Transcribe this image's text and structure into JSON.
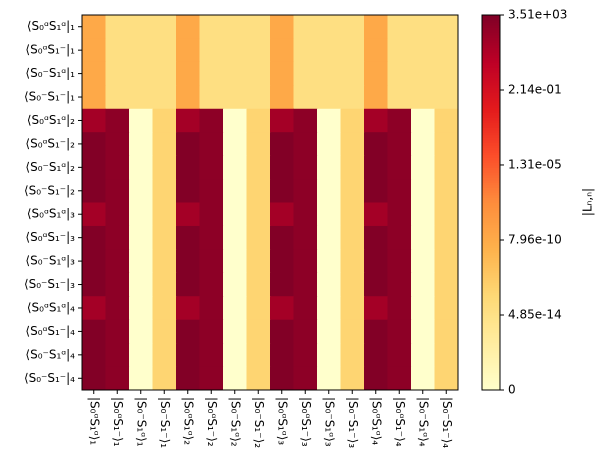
{
  "chart_data": {
    "type": "heatmap",
    "colorbar_label": "|Lₙ,ₙ|",
    "colormap": "YlOrRd",
    "colorbar_scale": "symlog",
    "clim": [
      0,
      3510
    ],
    "cticks": [
      0,
      {
        "value": 4.85e-14,
        "label": "4.85e-14"
      },
      {
        "value": 7.96e-10,
        "label": "7.96e-10"
      },
      {
        "value": 1.31e-05,
        "label": "1.31e-05"
      },
      {
        "value": 0.214,
        "label": "2.14e-01"
      },
      {
        "value": 3510,
        "label": "3.51e+03"
      }
    ],
    "y_categories": [
      "⟨S₀ᵅS₁ᵅ|₁",
      "⟨S₀ᵅS₁⁻|₁",
      "⟨S₀⁻S₁ᵅ|₁",
      "⟨S₀⁻S₁⁻|₁",
      "⟨S₀ᵅS₁ᵅ|₂",
      "⟨S₀ᵅS₁⁻|₂",
      "⟨S₀⁻S₁ᵅ|₂",
      "⟨S₀⁻S₁⁻|₂",
      "⟨S₀ᵅS₁ᵅ|₃",
      "⟨S₀ᵅS₁⁻|₃",
      "⟨S₀⁻S₁ᵅ|₃",
      "⟨S₀⁻S₁⁻|₃",
      "⟨S₀ᵅS₁ᵅ|₄",
      "⟨S₀ᵅS₁⁻|₄",
      "⟨S₀⁻S₁ᵅ|₄",
      "⟨S₀⁻S₁⁻|₄"
    ],
    "x_categories": [
      "|S₀ᵅS₁ᵅ⟩₁",
      "|S₀ᵅS₁⁻⟩₁",
      "|S₀⁻S₁ᵅ⟩₁",
      "|S₀⁻S₁⁻⟩₁",
      "|S₀ᵅS₁ᵅ⟩₂",
      "|S₀ᵅS₁⁻⟩₂",
      "|S₀⁻S₁ᵅ⟩₂",
      "|S₀⁻S₁⁻⟩₂",
      "|S₀ᵅS₁ᵅ⟩₃",
      "|S₀ᵅS₁⁻⟩₃",
      "|S₀⁻S₁ᵅ⟩₃",
      "|S₀⁻S₁⁻⟩₃",
      "|S₀ᵅS₁ᵅ⟩₄",
      "|S₀ᵅS₁⁻⟩₄",
      "|S₀⁻S₁ᵅ⟩₄",
      "|S₀⁻S₁⁻⟩₄"
    ],
    "values": [
      [
        1e-09,
        1e-13,
        1e-13,
        1e-13,
        1e-09,
        1e-13,
        1e-13,
        1e-13,
        1e-09,
        1e-13,
        1e-13,
        1e-13,
        1e-09,
        1e-13,
        1e-13,
        1e-13
      ],
      [
        1e-09,
        1e-13,
        1e-13,
        1e-13,
        1e-09,
        1e-13,
        1e-13,
        1e-13,
        1e-09,
        1e-13,
        1e-13,
        1e-13,
        1e-09,
        1e-13,
        1e-13,
        1e-13
      ],
      [
        1e-09,
        1e-13,
        1e-13,
        1e-13,
        1e-09,
        1e-13,
        1e-13,
        1e-13,
        1e-09,
        1e-13,
        1e-13,
        1e-13,
        1e-09,
        1e-13,
        1e-13,
        1e-13
      ],
      [
        1e-09,
        1e-13,
        1e-13,
        1e-13,
        1e-09,
        1e-13,
        1e-13,
        1e-13,
        1e-09,
        1e-13,
        1e-13,
        1e-13,
        1e-09,
        1e-13,
        1e-13,
        1e-13
      ],
      [
        100,
        1000,
        0,
        1e-12,
        100,
        1000,
        0,
        1e-12,
        100,
        1000,
        0,
        1e-12,
        100,
        1000,
        0,
        1e-12
      ],
      [
        3000,
        1000,
        0,
        1e-12,
        3000,
        1000,
        0,
        1e-12,
        3000,
        1000,
        0,
        1e-12,
        3000,
        1000,
        0,
        1e-12
      ],
      [
        3000,
        1000,
        0,
        1e-12,
        3000,
        1000,
        0,
        1e-12,
        3000,
        1000,
        0,
        1e-12,
        3000,
        1000,
        0,
        1e-12
      ],
      [
        3000,
        1000,
        0,
        1e-12,
        3000,
        1000,
        0,
        1e-12,
        3000,
        1000,
        0,
        1e-12,
        3000,
        1000,
        0,
        1e-12
      ],
      [
        100,
        1000,
        0,
        1e-12,
        100,
        1000,
        0,
        1e-12,
        100,
        1000,
        0,
        1e-12,
        100,
        1000,
        0,
        1e-12
      ],
      [
        3000,
        1000,
        0,
        1e-12,
        3000,
        1000,
        0,
        1e-12,
        3000,
        1000,
        0,
        1e-12,
        3000,
        1000,
        0,
        1e-12
      ],
      [
        3000,
        1000,
        0,
        1e-12,
        3000,
        1000,
        0,
        1e-12,
        3000,
        1000,
        0,
        1e-12,
        3000,
        1000,
        0,
        1e-12
      ],
      [
        3000,
        1000,
        0,
        1e-12,
        3000,
        1000,
        0,
        1e-12,
        3000,
        1000,
        0,
        1e-12,
        3000,
        1000,
        0,
        1e-12
      ],
      [
        100,
        1000,
        0,
        1e-12,
        100,
        1000,
        0,
        1e-12,
        100,
        1000,
        0,
        1e-12,
        100,
        1000,
        0,
        1e-12
      ],
      [
        3000,
        1000,
        0,
        1e-12,
        3000,
        1000,
        0,
        1e-12,
        3000,
        1000,
        0,
        1e-12,
        3000,
        1000,
        0,
        1e-12
      ],
      [
        3000,
        1000,
        0,
        1e-12,
        3000,
        1000,
        0,
        1e-12,
        3000,
        1000,
        0,
        1e-12,
        3000,
        1000,
        0,
        1e-12
      ],
      [
        3000,
        1000,
        0,
        1e-12,
        3000,
        1000,
        0,
        1e-12,
        3000,
        1000,
        0,
        1e-12,
        3000,
        1000,
        0,
        1e-12
      ]
    ]
  }
}
